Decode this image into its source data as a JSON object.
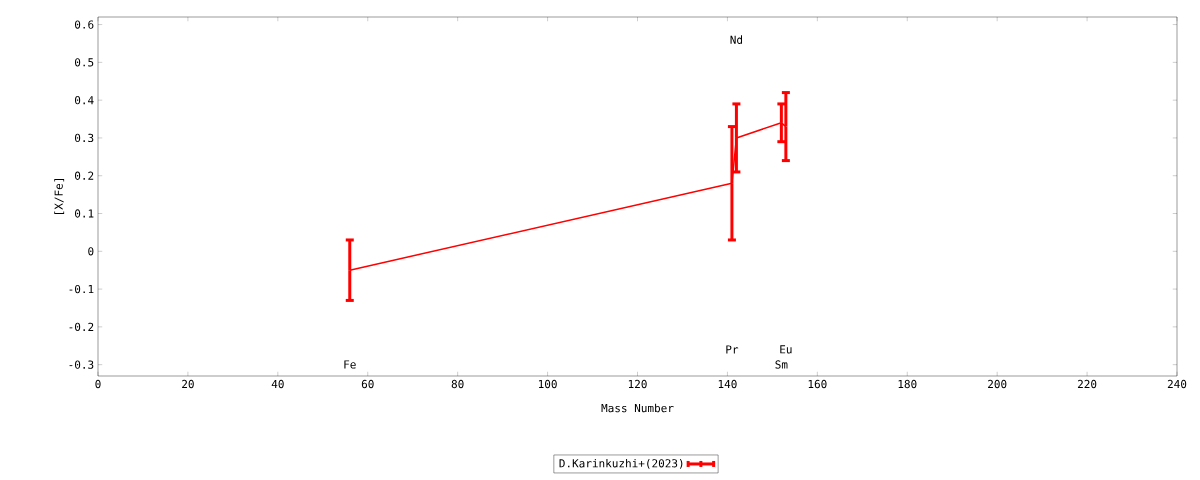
{
  "chart_data": {
    "type": "line",
    "xlabel": "Mass Number",
    "ylabel": "[X/Fe]",
    "x": [
      56,
      141,
      142,
      152,
      153
    ],
    "series": [
      {
        "name": "D.Karinkuzhi+(2023)",
        "color": "#ff0000",
        "values": [
          -0.05,
          0.18,
          0.3,
          0.34,
          0.33
        ],
        "errors": [
          0.08,
          0.15,
          0.09,
          0.05,
          0.09
        ]
      }
    ],
    "xlim": [
      0,
      240
    ],
    "xticks": [
      0,
      20,
      40,
      60,
      80,
      100,
      120,
      140,
      160,
      180,
      200,
      220,
      240
    ],
    "ylim": [
      -0.33,
      0.62
    ],
    "yticks": [
      -0.3,
      -0.2,
      -0.1,
      0,
      0.1,
      0.2,
      0.3,
      0.4,
      0.5,
      0.6
    ],
    "annotations": [
      "Fe",
      "Pr",
      "Nd",
      "Sm",
      "Eu"
    ],
    "legend": "bottom",
    "marker": "none",
    "line_style": "solid",
    "grid": false
  }
}
